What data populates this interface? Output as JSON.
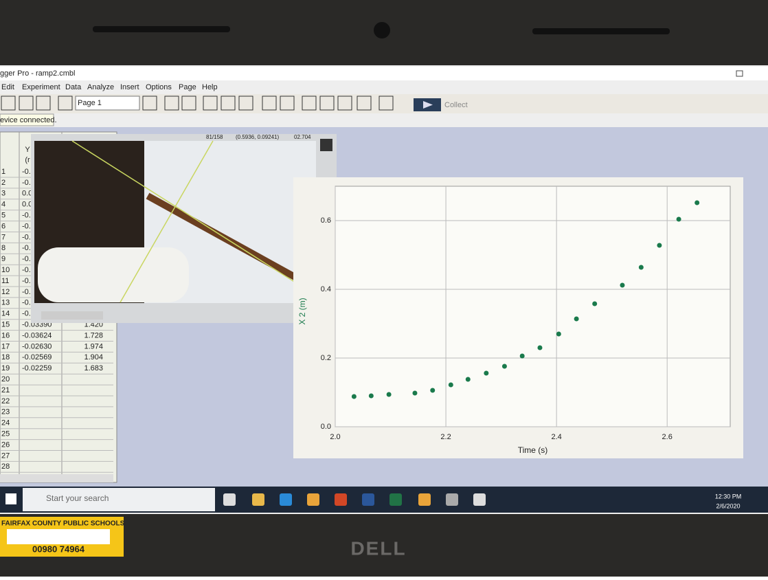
{
  "window": {
    "title": "gger Pro - ramp2.cmbl",
    "menu": [
      "Edit",
      "Experiment",
      "Data",
      "Analyze",
      "Insert",
      "Options",
      "Page",
      "Help"
    ],
    "page_select": "Page 1",
    "collect": "Collect",
    "status": "evice connected."
  },
  "video": {
    "frame": "81/158",
    "coords": "(0.5936, 0.09241)",
    "time": "02.704"
  },
  "table": {
    "header": [
      "Y",
      "(r"
    ],
    "rows": [
      {
        "n": "1",
        "cells": [
          "-0.00"
        ]
      },
      {
        "n": "2",
        "cells": [
          "-0.0"
        ]
      },
      {
        "n": "3",
        "cells": [
          "0.00"
        ]
      },
      {
        "n": "4",
        "cells": [
          "0.00"
        ]
      },
      {
        "n": "5",
        "cells": [
          "-0.00"
        ]
      },
      {
        "n": "6",
        "cells": [
          "-0.0"
        ]
      },
      {
        "n": "7",
        "cells": [
          "-0.0"
        ]
      },
      {
        "n": "8",
        "cells": [
          "-0.0"
        ]
      },
      {
        "n": "9",
        "cells": [
          "-0.0"
        ]
      },
      {
        "n": "10",
        "cells": [
          "-0.0"
        ]
      },
      {
        "n": "11",
        "cells": [
          "-0.0"
        ]
      },
      {
        "n": "12",
        "cells": [
          "-0.0"
        ]
      },
      {
        "n": "13",
        "cells": [
          "-0.0"
        ]
      },
      {
        "n": "14",
        "cells": [
          "-0.0"
        ]
      },
      {
        "n": "15",
        "cells": [
          "-0.03390",
          "1.420"
        ]
      },
      {
        "n": "16",
        "cells": [
          "-0.03624",
          "1.728"
        ]
      },
      {
        "n": "17",
        "cells": [
          "-0.02630",
          "1.974"
        ]
      },
      {
        "n": "18",
        "cells": [
          "-0.02569",
          "1.904"
        ]
      },
      {
        "n": "19",
        "cells": [
          "-0.02259",
          "1.683"
        ]
      },
      {
        "n": "20"
      },
      {
        "n": "21"
      },
      {
        "n": "22"
      },
      {
        "n": "23"
      },
      {
        "n": "24"
      },
      {
        "n": "25"
      },
      {
        "n": "26"
      },
      {
        "n": "27"
      },
      {
        "n": "28"
      }
    ]
  },
  "chart_data": {
    "type": "scatter",
    "x_label": "Time (s)",
    "y_label": "X 2 (m)",
    "color": "#1a7a4c",
    "grid": true,
    "x": [
      2.034,
      2.065,
      2.097,
      2.144,
      2.176,
      2.209,
      2.24,
      2.273,
      2.306,
      2.338,
      2.37,
      2.404,
      2.436,
      2.469,
      2.519,
      2.553,
      2.586,
      2.621,
      2.654
    ],
    "values": [
      0.088,
      0.09,
      0.094,
      0.098,
      0.106,
      0.122,
      0.138,
      0.156,
      0.176,
      0.206,
      0.23,
      0.27,
      0.314,
      0.358,
      0.412,
      0.464,
      0.528,
      0.604,
      0.652
    ],
    "xlim": [
      2.0,
      2.714
    ],
    "ylim": [
      0,
      0.7
    ],
    "xticks": [
      {
        "value": 2,
        "label": "2.0"
      },
      2.2,
      2.4,
      2.6
    ],
    "yticks": [
      {
        "value": 0,
        "label": "0.0"
      },
      0.2,
      0.4,
      0.6
    ]
  },
  "taskbar": {
    "search": "Start your search",
    "time": "12:30 PM",
    "date": "2/6/2020"
  },
  "sticker": {
    "org": "FAIRFAX COUNTY PUBLIC SCHOOLS",
    "code": "00980 74964"
  },
  "brand": "DELL"
}
